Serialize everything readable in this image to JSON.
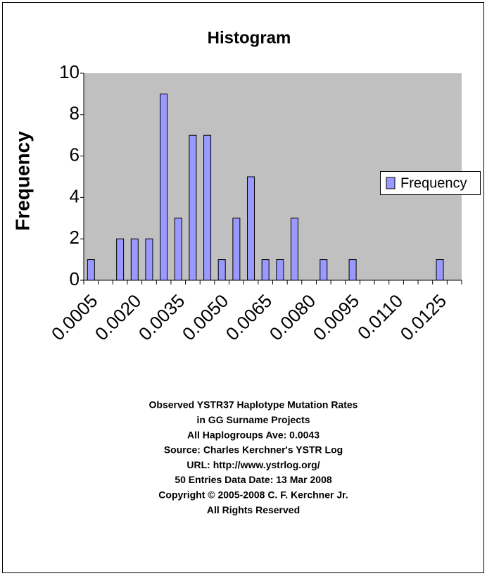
{
  "chart_data": {
    "type": "bar",
    "title": "Histogram",
    "ylabel": "Frequency",
    "categories": [
      "0.0005",
      null,
      null,
      "0.0020",
      null,
      null,
      "0.0035",
      null,
      null,
      "0.0050",
      null,
      null,
      "0.0065",
      null,
      null,
      "0.0080",
      null,
      null,
      "0.0095",
      null,
      null,
      "0.0110",
      null,
      null,
      "0.0125",
      null
    ],
    "series": [
      {
        "name": "Frequency",
        "color": "#9999ff",
        "values": [
          1,
          0,
          2,
          2,
          2,
          9,
          3,
          7,
          7,
          1,
          3,
          5,
          1,
          1,
          3,
          0,
          1,
          0,
          1,
          0,
          0,
          0,
          0,
          0,
          1,
          0
        ]
      }
    ],
    "ylim": [
      0,
      10
    ],
    "yticks": [
      0,
      2,
      4,
      6,
      8,
      10
    ],
    "legend": "right",
    "notes": [
      "Observed YSTR37 Haplotype Mutation Rates",
      "in GG Surname Projects",
      "All Haplogroups   Ave:  0.0043",
      "Source: Charles Kerchner's YSTR Log",
      "URL: http://www.ystrlog.org/",
      "50 Entries Data Date: 13 Mar 2008",
      "Copyright © 2005-2008 C. F. Kerchner Jr.",
      "All Rights Reserved"
    ]
  }
}
